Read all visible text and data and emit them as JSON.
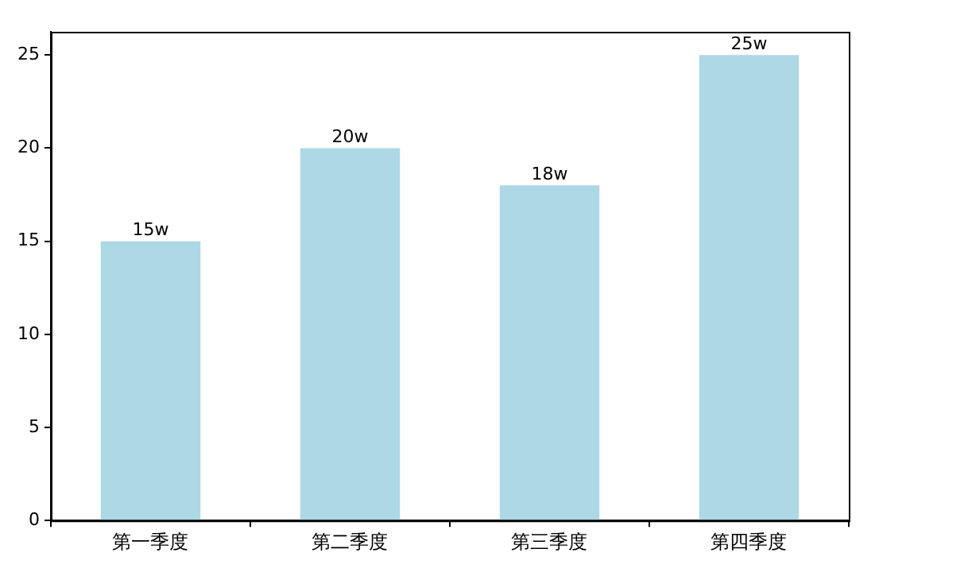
{
  "chart_data": {
    "type": "bar",
    "categories": [
      "第一季度",
      "第二季度",
      "第三季度",
      "第四季度"
    ],
    "values": [
      15,
      20,
      18,
      25
    ],
    "color": "#add8e6",
    "value_labels": [
      "15w",
      "20w",
      "18w",
      "25w"
    ],
    "ylim": [
      0,
      26.25
    ],
    "yticks": [
      0,
      5,
      10,
      15,
      20,
      25
    ],
    "grid": false,
    "legend": false
  }
}
